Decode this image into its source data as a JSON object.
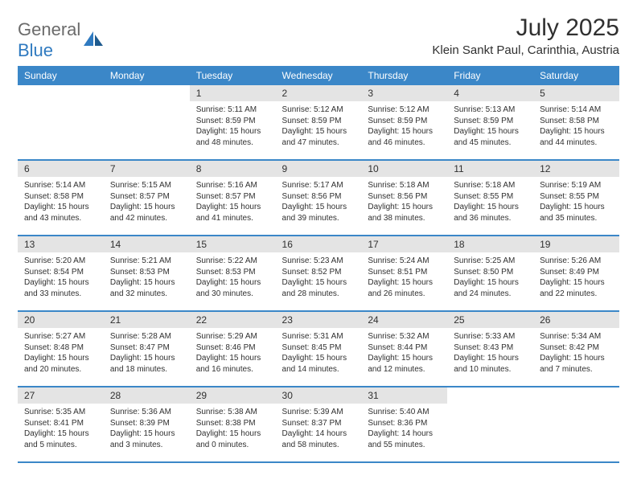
{
  "logo": {
    "text1": "General",
    "text2": "Blue"
  },
  "title": "July 2025",
  "location": "Klein Sankt Paul, Carinthia, Austria",
  "colors": {
    "header_bg": "#3b87c8",
    "daynum_bg": "#e4e4e4",
    "border": "#3b87c8",
    "text": "#303030",
    "logo_gray": "#6b6b6b",
    "logo_blue": "#2f7ac0"
  },
  "day_headers": [
    "Sunday",
    "Monday",
    "Tuesday",
    "Wednesday",
    "Thursday",
    "Friday",
    "Saturday"
  ],
  "weeks": [
    {
      "nums": [
        "",
        "",
        "1",
        "2",
        "3",
        "4",
        "5"
      ],
      "cells": [
        null,
        null,
        {
          "sr": "Sunrise: 5:11 AM",
          "ss": "Sunset: 8:59 PM",
          "d1": "Daylight: 15 hours",
          "d2": "and 48 minutes."
        },
        {
          "sr": "Sunrise: 5:12 AM",
          "ss": "Sunset: 8:59 PM",
          "d1": "Daylight: 15 hours",
          "d2": "and 47 minutes."
        },
        {
          "sr": "Sunrise: 5:12 AM",
          "ss": "Sunset: 8:59 PM",
          "d1": "Daylight: 15 hours",
          "d2": "and 46 minutes."
        },
        {
          "sr": "Sunrise: 5:13 AM",
          "ss": "Sunset: 8:59 PM",
          "d1": "Daylight: 15 hours",
          "d2": "and 45 minutes."
        },
        {
          "sr": "Sunrise: 5:14 AM",
          "ss": "Sunset: 8:58 PM",
          "d1": "Daylight: 15 hours",
          "d2": "and 44 minutes."
        }
      ]
    },
    {
      "nums": [
        "6",
        "7",
        "8",
        "9",
        "10",
        "11",
        "12"
      ],
      "cells": [
        {
          "sr": "Sunrise: 5:14 AM",
          "ss": "Sunset: 8:58 PM",
          "d1": "Daylight: 15 hours",
          "d2": "and 43 minutes."
        },
        {
          "sr": "Sunrise: 5:15 AM",
          "ss": "Sunset: 8:57 PM",
          "d1": "Daylight: 15 hours",
          "d2": "and 42 minutes."
        },
        {
          "sr": "Sunrise: 5:16 AM",
          "ss": "Sunset: 8:57 PM",
          "d1": "Daylight: 15 hours",
          "d2": "and 41 minutes."
        },
        {
          "sr": "Sunrise: 5:17 AM",
          "ss": "Sunset: 8:56 PM",
          "d1": "Daylight: 15 hours",
          "d2": "and 39 minutes."
        },
        {
          "sr": "Sunrise: 5:18 AM",
          "ss": "Sunset: 8:56 PM",
          "d1": "Daylight: 15 hours",
          "d2": "and 38 minutes."
        },
        {
          "sr": "Sunrise: 5:18 AM",
          "ss": "Sunset: 8:55 PM",
          "d1": "Daylight: 15 hours",
          "d2": "and 36 minutes."
        },
        {
          "sr": "Sunrise: 5:19 AM",
          "ss": "Sunset: 8:55 PM",
          "d1": "Daylight: 15 hours",
          "d2": "and 35 minutes."
        }
      ]
    },
    {
      "nums": [
        "13",
        "14",
        "15",
        "16",
        "17",
        "18",
        "19"
      ],
      "cells": [
        {
          "sr": "Sunrise: 5:20 AM",
          "ss": "Sunset: 8:54 PM",
          "d1": "Daylight: 15 hours",
          "d2": "and 33 minutes."
        },
        {
          "sr": "Sunrise: 5:21 AM",
          "ss": "Sunset: 8:53 PM",
          "d1": "Daylight: 15 hours",
          "d2": "and 32 minutes."
        },
        {
          "sr": "Sunrise: 5:22 AM",
          "ss": "Sunset: 8:53 PM",
          "d1": "Daylight: 15 hours",
          "d2": "and 30 minutes."
        },
        {
          "sr": "Sunrise: 5:23 AM",
          "ss": "Sunset: 8:52 PM",
          "d1": "Daylight: 15 hours",
          "d2": "and 28 minutes."
        },
        {
          "sr": "Sunrise: 5:24 AM",
          "ss": "Sunset: 8:51 PM",
          "d1": "Daylight: 15 hours",
          "d2": "and 26 minutes."
        },
        {
          "sr": "Sunrise: 5:25 AM",
          "ss": "Sunset: 8:50 PM",
          "d1": "Daylight: 15 hours",
          "d2": "and 24 minutes."
        },
        {
          "sr": "Sunrise: 5:26 AM",
          "ss": "Sunset: 8:49 PM",
          "d1": "Daylight: 15 hours",
          "d2": "and 22 minutes."
        }
      ]
    },
    {
      "nums": [
        "20",
        "21",
        "22",
        "23",
        "24",
        "25",
        "26"
      ],
      "cells": [
        {
          "sr": "Sunrise: 5:27 AM",
          "ss": "Sunset: 8:48 PM",
          "d1": "Daylight: 15 hours",
          "d2": "and 20 minutes."
        },
        {
          "sr": "Sunrise: 5:28 AM",
          "ss": "Sunset: 8:47 PM",
          "d1": "Daylight: 15 hours",
          "d2": "and 18 minutes."
        },
        {
          "sr": "Sunrise: 5:29 AM",
          "ss": "Sunset: 8:46 PM",
          "d1": "Daylight: 15 hours",
          "d2": "and 16 minutes."
        },
        {
          "sr": "Sunrise: 5:31 AM",
          "ss": "Sunset: 8:45 PM",
          "d1": "Daylight: 15 hours",
          "d2": "and 14 minutes."
        },
        {
          "sr": "Sunrise: 5:32 AM",
          "ss": "Sunset: 8:44 PM",
          "d1": "Daylight: 15 hours",
          "d2": "and 12 minutes."
        },
        {
          "sr": "Sunrise: 5:33 AM",
          "ss": "Sunset: 8:43 PM",
          "d1": "Daylight: 15 hours",
          "d2": "and 10 minutes."
        },
        {
          "sr": "Sunrise: 5:34 AM",
          "ss": "Sunset: 8:42 PM",
          "d1": "Daylight: 15 hours",
          "d2": "and 7 minutes."
        }
      ]
    },
    {
      "nums": [
        "27",
        "28",
        "29",
        "30",
        "31",
        "",
        ""
      ],
      "cells": [
        {
          "sr": "Sunrise: 5:35 AM",
          "ss": "Sunset: 8:41 PM",
          "d1": "Daylight: 15 hours",
          "d2": "and 5 minutes."
        },
        {
          "sr": "Sunrise: 5:36 AM",
          "ss": "Sunset: 8:39 PM",
          "d1": "Daylight: 15 hours",
          "d2": "and 3 minutes."
        },
        {
          "sr": "Sunrise: 5:38 AM",
          "ss": "Sunset: 8:38 PM",
          "d1": "Daylight: 15 hours",
          "d2": "and 0 minutes."
        },
        {
          "sr": "Sunrise: 5:39 AM",
          "ss": "Sunset: 8:37 PM",
          "d1": "Daylight: 14 hours",
          "d2": "and 58 minutes."
        },
        {
          "sr": "Sunrise: 5:40 AM",
          "ss": "Sunset: 8:36 PM",
          "d1": "Daylight: 14 hours",
          "d2": "and 55 minutes."
        },
        null,
        null
      ]
    }
  ]
}
